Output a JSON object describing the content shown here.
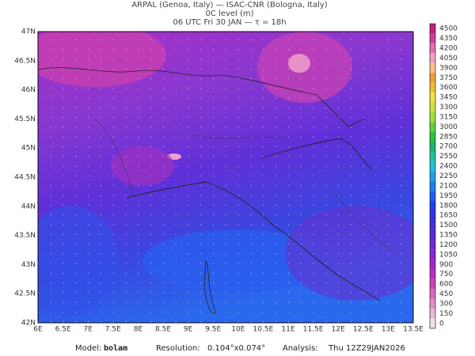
{
  "header": {
    "lines": [
      "ARPAL (Genoa, Italy)  —  ISAC-CNR (Bologna, Italy)",
      "0C level (m)",
      "06 UTC Fri 30 JAN  —  τ = 18h"
    ]
  },
  "map": {
    "lat_labels": [
      "47N",
      "46.5N",
      "46N",
      "45.5N",
      "45N",
      "44.5N",
      "44N",
      "43.5N",
      "43N",
      "42.5N",
      "42N"
    ],
    "lon_labels": [
      "6E",
      "6.5E",
      "7E",
      "7.5E",
      "8E",
      "8.5E",
      "9E",
      "9.5E",
      "10E",
      "10.5E",
      "11E",
      "11.5E",
      "12E",
      "12.5E",
      "13E",
      "13.5E"
    ]
  },
  "colorbar": {
    "levels": [
      4500,
      4350,
      4200,
      4050,
      3900,
      3750,
      3600,
      3450,
      3300,
      3150,
      3000,
      2850,
      2700,
      2550,
      2400,
      2250,
      2100,
      1950,
      1800,
      1650,
      1500,
      1350,
      1200,
      1050,
      900,
      750,
      600,
      450,
      300,
      150,
      0
    ],
    "colors": [
      "#c02080",
      "#d040a0",
      "#e070b0",
      "#f0a0c0",
      "#f8c090",
      "#f0a040",
      "#e8c030",
      "#f0e040",
      "#d0e040",
      "#a0e040",
      "#60d040",
      "#30c040",
      "#20b070",
      "#20c0a0",
      "#20c0d0",
      "#20a0e0",
      "#2080e8",
      "#2060f0",
      "#2040e8",
      "#3030e0",
      "#4030d8",
      "#5828d8",
      "#7028d0",
      "#8828d0",
      "#a028c8",
      "#b830c0",
      "#c848b0",
      "#d868b8",
      "#e090c8",
      "#e8b8d8",
      "#f0e0e8"
    ]
  },
  "footer": {
    "model_label": "Model:",
    "model": "bolam",
    "resolution_label": "Resolution:",
    "resolution": "0.104°x0.074°",
    "analysis_label": "Analysis:",
    "analysis": "Thu 12Z29JAN2026"
  }
}
